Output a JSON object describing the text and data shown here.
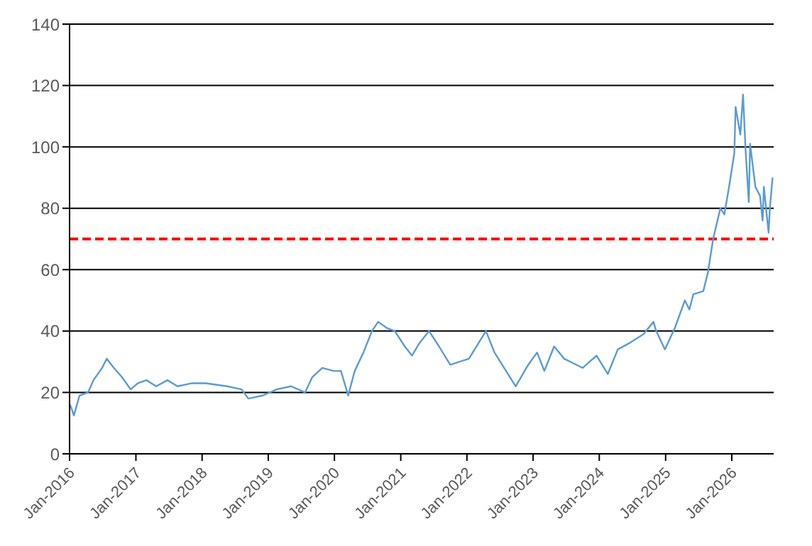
{
  "chart_data": {
    "type": "line",
    "x": [
      "2016-01-04",
      "2016-01-25",
      "2016-02-25",
      "2016-04-12",
      "2016-05-12",
      "2016-06-29",
      "2016-07-24",
      "2016-09-01",
      "2016-10-16",
      "2016-12-03",
      "2017-01-12",
      "2017-02-28",
      "2017-04-23",
      "2017-06-24",
      "2017-08-18",
      "2017-11-06",
      "2018-01-22",
      "2018-05-19",
      "2018-08-07",
      "2018-09-13",
      "2018-12-02",
      "2019-02-17",
      "2019-05-07",
      "2019-07-23",
      "2019-09-01",
      "2019-10-26",
      "2019-12-28",
      "2020-02-06",
      "2020-03-17",
      "2020-04-22",
      "2020-06-09",
      "2020-07-26",
      "2020-08-29",
      "2020-10-16",
      "2020-11-29",
      "2021-01-23",
      "2021-03-04",
      "2021-04-13",
      "2021-06-06",
      "2021-07-31",
      "2021-10-01",
      "2022-01-12",
      "2022-04-16",
      "2022-06-02",
      "2022-09-27",
      "2022-12-05",
      "2023-01-23",
      "2023-03-04",
      "2023-04-27",
      "2023-06-21",
      "2023-10-01",
      "2023-12-17",
      "2024-02-17",
      "2024-04-12",
      "2024-06-13",
      "2024-09-01",
      "2024-10-26",
      "2024-11-10",
      "2024-12-28",
      "2025-02-21",
      "2025-04-17",
      "2025-05-12",
      "2025-06-03",
      "2025-07-28",
      "2025-08-22",
      "2025-09-20",
      "2025-10-30",
      "2025-11-21",
      "2025-12-17",
      "2026-01-15",
      "2026-01-22",
      "2026-02-17",
      "2026-03-04",
      "2026-03-18",
      "2026-04-05",
      "2026-04-12",
      "2026-05-11",
      "2026-06-06",
      "2026-06-20",
      "2026-06-27",
      "2026-07-23",
      "2026-07-30",
      "2026-08-14"
    ],
    "series": [
      {
        "color": "#5b9bd5",
        "values": [
          16,
          12.5,
          19,
          20,
          24,
          28,
          31,
          28,
          25,
          21,
          23,
          24,
          22,
          24,
          22,
          23,
          23,
          22,
          21,
          18,
          19,
          21,
          22,
          20,
          25,
          28,
          27,
          27,
          19,
          27,
          33,
          40,
          43,
          41,
          40,
          35,
          32,
          36,
          40,
          35,
          29,
          31,
          40,
          33,
          22,
          29,
          33,
          27,
          35,
          31,
          28,
          32,
          26,
          34,
          36,
          39,
          43,
          40,
          34,
          41,
          50,
          47,
          52,
          53,
          59,
          70,
          80,
          78,
          87,
          98,
          113,
          104,
          117,
          99,
          82,
          101,
          87,
          84,
          76,
          87,
          72,
          80,
          90
        ]
      }
    ],
    "xlim": [
      "2016-01-01",
      "2026-08-20"
    ],
    "xticks": [
      {
        "value": "2016-01-01",
        "label": "Jan-2016"
      },
      {
        "value": "2017-01-01",
        "label": "Jan-2017"
      },
      {
        "value": "2018-01-01",
        "label": "Jan-2018"
      },
      {
        "value": "2019-01-01",
        "label": "Jan-2019"
      },
      {
        "value": "2020-01-01",
        "label": "Jan-2020"
      },
      {
        "value": "2021-01-01",
        "label": "Jan-2021"
      },
      {
        "value": "2022-01-01",
        "label": "Jan-2022"
      },
      {
        "value": "2023-01-01",
        "label": "Jan-2023"
      },
      {
        "value": "2024-01-01",
        "label": "Jan-2024"
      },
      {
        "value": "2025-01-01",
        "label": "Jan-2025"
      },
      {
        "value": "2026-01-01",
        "label": "Jan-2026"
      }
    ],
    "ylim": [
      0,
      140
    ],
    "yticks": [
      0,
      20,
      40,
      60,
      80,
      100,
      120,
      140
    ],
    "grid": "y",
    "marker": "none",
    "line_style": "solid",
    "ref_lines": [
      {
        "axis": "y",
        "value": 70,
        "color": "#ff0000",
        "line_style": "dashed"
      }
    ]
  }
}
